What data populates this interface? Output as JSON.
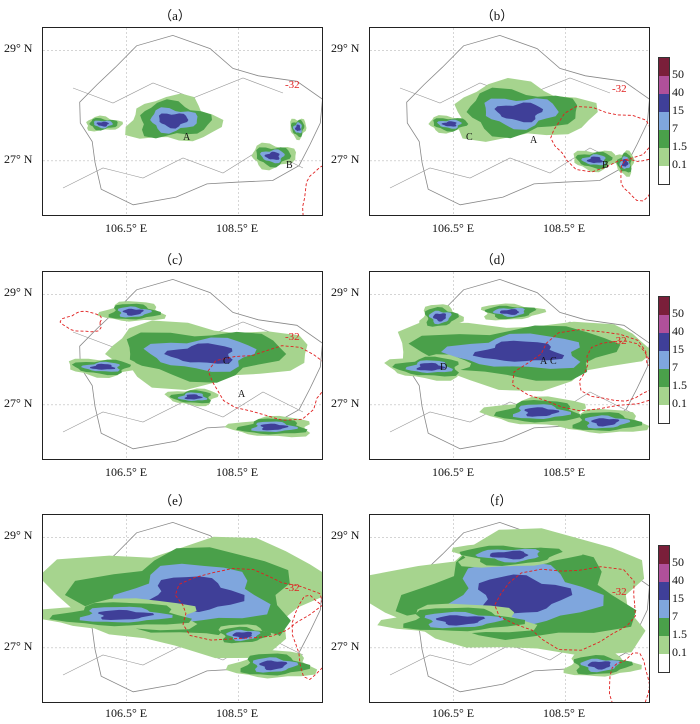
{
  "panels": [
    {
      "label": "（a）",
      "points": [
        "A",
        "B"
      ]
    },
    {
      "label": "（b）",
      "points": [
        "A",
        "B",
        "C"
      ]
    },
    {
      "label": "（c）",
      "points": [
        "A",
        "C"
      ]
    },
    {
      "label": "（d）",
      "points": [
        "A",
        "C",
        "D"
      ]
    },
    {
      "label": "（e）",
      "points": []
    },
    {
      "label": "（f）",
      "points": []
    }
  ],
  "axes": {
    "lat_labels": [
      "29° N",
      "27° N"
    ],
    "lon_labels": [
      "106.5° E",
      "108.5° E"
    ]
  },
  "contour_value": "-32",
  "colorbar": {
    "levels": [
      "50",
      "40",
      "15",
      "7",
      "1.5",
      "0.1"
    ],
    "colors": [
      "#7a1f3a",
      "#b0509a",
      "#3f3f98",
      "#7fa6dd",
      "#4aa04a",
      "#a6d48e",
      "#ffffff"
    ]
  }
}
